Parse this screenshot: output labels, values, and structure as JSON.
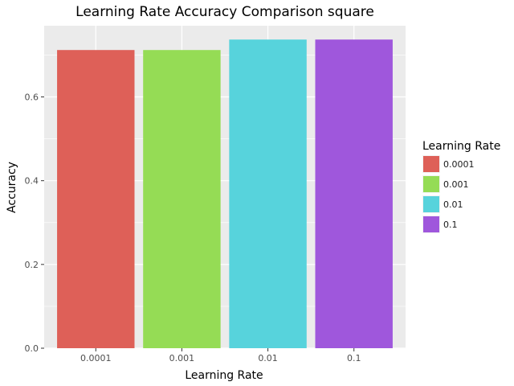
{
  "chart_data": {
    "type": "bar",
    "title": "Learning Rate Accuracy Comparison square",
    "xlabel": "Learning Rate",
    "ylabel": "Accuracy",
    "categories": [
      "0.0001",
      "0.001",
      "0.01",
      "0.1"
    ],
    "values": [
      0.712,
      0.712,
      0.737,
      0.737
    ],
    "colors": [
      "#de6058",
      "#95dc55",
      "#57d3dc",
      "#9f57dc"
    ],
    "ylim": [
      0,
      0.77
    ],
    "yticks": [
      0.0,
      0.2,
      0.4,
      0.6
    ],
    "ytick_labels": [
      "0.0",
      "0.2",
      "0.4",
      "0.6"
    ],
    "grid": true,
    "legend": {
      "title": "Learning Rate",
      "placement": "right",
      "entries": [
        "0.0001",
        "0.001",
        "0.01",
        "0.1"
      ]
    },
    "panel_background": "#ebebeb",
    "grid_color": "#ffffff"
  }
}
